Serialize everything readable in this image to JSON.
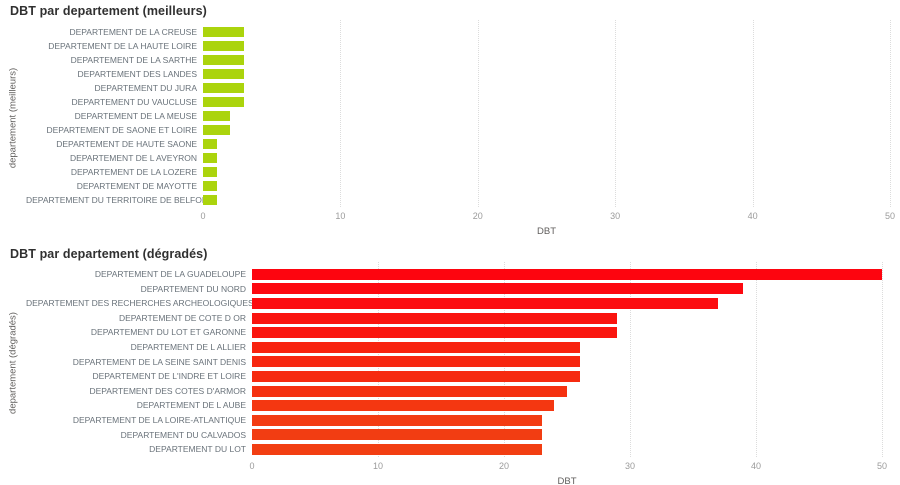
{
  "chart_data": [
    {
      "type": "bar",
      "orientation": "horizontal",
      "title": "DBT par departement (meilleurs)",
      "xlabel": "DBT",
      "ylabel": "departement (meilleurs)",
      "xlim": [
        0,
        50
      ],
      "x_ticks": [
        0,
        10,
        20,
        30,
        40,
        50
      ],
      "grid": "vertical-dotted",
      "legend": "none",
      "bar_color": "#ABD40D",
      "categories": [
        "DEPARTEMENT DE LA CREUSE",
        "DEPARTEMENT DE LA HAUTE LOIRE",
        "DEPARTEMENT DE LA SARTHE",
        "DEPARTEMENT DES LANDES",
        "DEPARTEMENT DU JURA",
        "DEPARTEMENT DU VAUCLUSE",
        "DEPARTEMENT DE LA MEUSE",
        "DEPARTEMENT DE SAONE ET LOIRE",
        "DEPARTEMENT DE HAUTE SAONE",
        "DEPARTEMENT DE L AVEYRON",
        "DEPARTEMENT DE LA LOZERE",
        "DEPARTEMENT DE MAYOTTE",
        "DEPARTEMENT DU TERRITOIRE DE BELFORT"
      ],
      "values": [
        3,
        3,
        3,
        3,
        3,
        3,
        2,
        2,
        1,
        1,
        1,
        1,
        1
      ]
    },
    {
      "type": "bar",
      "orientation": "horizontal",
      "title": "DBT par departement (dégradés)",
      "xlabel": "DBT",
      "ylabel": "departement (dégradés)",
      "xlim": [
        0,
        50
      ],
      "x_ticks": [
        0,
        10,
        20,
        30,
        40,
        50
      ],
      "grid": "vertical-dotted",
      "legend": "none",
      "bar_colors": [
        "#FD050F",
        "#FD0810",
        "#FC0C10",
        "#FA140F",
        "#FA160F",
        "#F8230F",
        "#F72710",
        "#F62B10",
        "#F53110",
        "#F43711",
        "#F33C12",
        "#F23D12",
        "#F23E12"
      ],
      "categories": [
        "DEPARTEMENT DE LA GUADELOUPE",
        "DEPARTEMENT DU NORD",
        "DEPARTEMENT DES RECHERCHES ARCHEOLOGIQUES S...",
        "DEPARTEMENT DE COTE D OR",
        "DEPARTEMENT DU LOT ET GARONNE",
        "DEPARTEMENT DE L ALLIER",
        "DEPARTEMENT DE LA SEINE SAINT DENIS",
        "DEPARTEMENT DE L'INDRE ET LOIRE",
        "DEPARTEMENT DES COTES D'ARMOR",
        "DEPARTEMENT DE L AUBE",
        "DEPARTEMENT DE LA LOIRE-ATLANTIQUE",
        "DEPARTEMENT DU CALVADOS",
        "DEPARTEMENT DU LOT"
      ],
      "values": [
        50,
        39,
        37,
        29,
        29,
        26,
        26,
        26,
        25,
        24,
        23,
        23,
        23
      ]
    }
  ]
}
